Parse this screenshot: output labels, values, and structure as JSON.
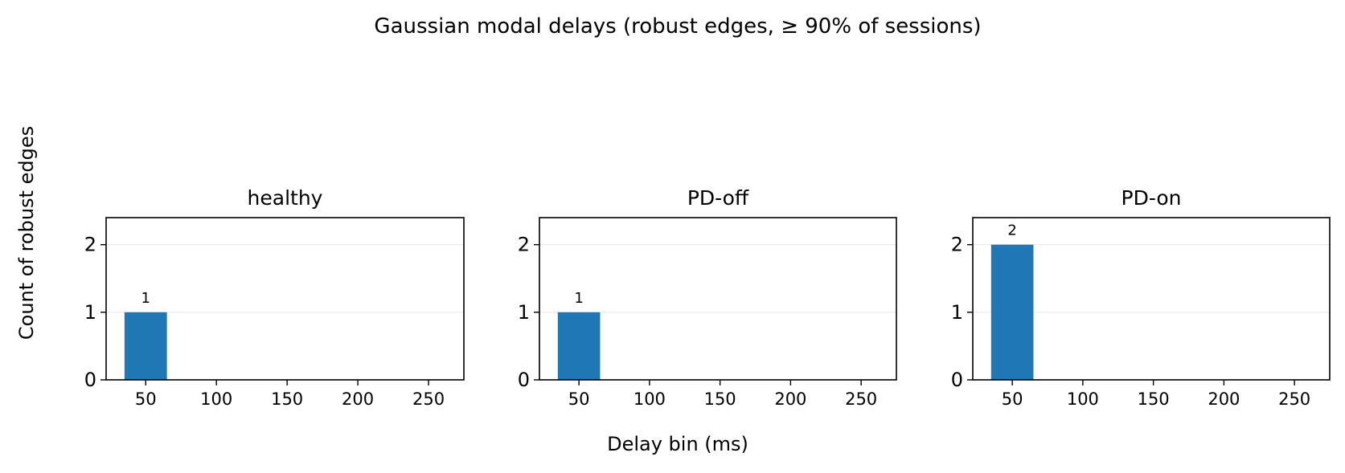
{
  "figure": {
    "suptitle": "Gaussian modal delays (robust edges, ≥ 90% of sessions)",
    "xlabel": "Delay bin (ms)",
    "ylabel": "Count of robust edges"
  },
  "colors": {
    "bar": "#1f77b4",
    "grid": "#e6e6e6",
    "axis": "#000000"
  },
  "chart_data": [
    {
      "type": "bar",
      "title": "healthy",
      "x": [
        50
      ],
      "values": [
        1
      ],
      "bar_labels": [
        "1"
      ],
      "bin_width_ms": 30,
      "xlim": [
        22,
        275
      ],
      "ylim": [
        0,
        2.4
      ],
      "xticks": [
        50,
        100,
        150,
        200,
        250
      ],
      "yticks": [
        0,
        1,
        2
      ],
      "grid": "y",
      "legend": "none"
    },
    {
      "type": "bar",
      "title": "PD-off",
      "x": [
        50
      ],
      "values": [
        1
      ],
      "bar_labels": [
        "1"
      ],
      "bin_width_ms": 30,
      "xlim": [
        22,
        275
      ],
      "ylim": [
        0,
        2.4
      ],
      "xticks": [
        50,
        100,
        150,
        200,
        250
      ],
      "yticks": [
        0,
        1,
        2
      ],
      "grid": "y",
      "legend": "none"
    },
    {
      "type": "bar",
      "title": "PD-on",
      "x": [
        50
      ],
      "values": [
        2
      ],
      "bar_labels": [
        "2"
      ],
      "bin_width_ms": 30,
      "xlim": [
        22,
        275
      ],
      "ylim": [
        0,
        2.4
      ],
      "xticks": [
        50,
        100,
        150,
        200,
        250
      ],
      "yticks": [
        0,
        1,
        2
      ],
      "grid": "y",
      "legend": "none"
    }
  ]
}
